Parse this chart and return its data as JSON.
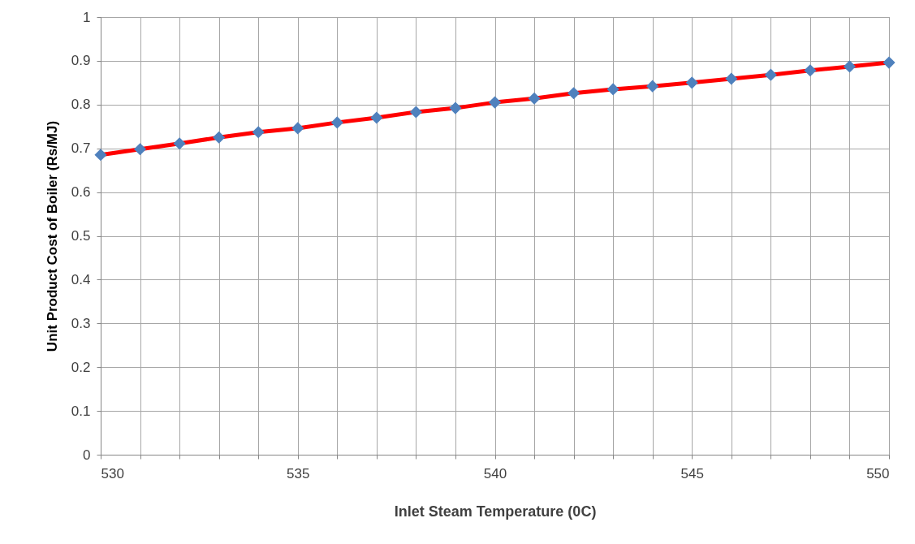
{
  "chart_data": {
    "type": "line",
    "xlabel": "Inlet Steam Temperature (0C)",
    "ylabel": "Unit Product Cost of Boiler (Rs/MJ)",
    "x": [
      530,
      531,
      532,
      533,
      534,
      535,
      536,
      537,
      538,
      539,
      540,
      541,
      542,
      543,
      544,
      545,
      546,
      547,
      548,
      549,
      550
    ],
    "series": [
      {
        "marker": "none",
        "color": "#ff0000",
        "values": [
          0.685,
          0.698,
          0.711,
          0.725,
          0.737,
          0.746,
          0.759,
          0.77,
          0.783,
          0.792,
          0.805,
          0.814,
          0.826,
          0.835,
          0.842,
          0.85,
          0.859,
          0.868,
          0.878,
          0.887,
          0.896
        ]
      },
      {
        "type": "scatter",
        "marker": "diamond",
        "color": "#4f81bd",
        "values": [
          0.685,
          0.698,
          0.711,
          0.725,
          0.737,
          0.746,
          0.759,
          0.77,
          0.783,
          0.792,
          0.805,
          0.814,
          0.826,
          0.835,
          0.842,
          0.85,
          0.859,
          0.868,
          0.878,
          0.887,
          0.896
        ]
      }
    ],
    "grid": true,
    "xlim": [
      530,
      550
    ],
    "ylim": [
      0,
      1
    ],
    "xticks": [
      530,
      {
        "value": 531,
        "label": null
      },
      {
        "value": 532,
        "label": null
      },
      {
        "value": 533,
        "label": null
      },
      {
        "value": 534,
        "label": null
      },
      535,
      {
        "value": 536,
        "label": null
      },
      {
        "value": 537,
        "label": null
      },
      {
        "value": 538,
        "label": null
      },
      {
        "value": 539,
        "label": null
      },
      540,
      {
        "value": 541,
        "label": null
      },
      {
        "value": 542,
        "label": null
      },
      {
        "value": 543,
        "label": null
      },
      {
        "value": 544,
        "label": null
      },
      545,
      {
        "value": 546,
        "label": null
      },
      {
        "value": 547,
        "label": null
      },
      {
        "value": 548,
        "label": null
      },
      {
        "value": 549,
        "label": null
      },
      550
    ],
    "yticks": [
      0,
      0.1,
      0.2,
      0.3,
      0.4,
      0.5,
      0.6,
      0.7,
      0.8,
      0.9,
      1
    ]
  }
}
